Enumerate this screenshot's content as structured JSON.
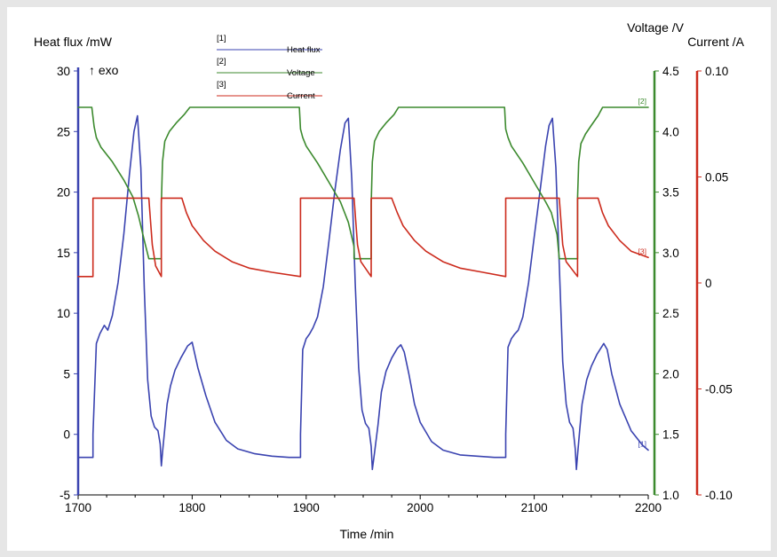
{
  "chart_data": {
    "type": "line",
    "xlabel": "Time /min",
    "xlim": [
      1700,
      2200
    ],
    "xticks": [
      1700,
      1800,
      1900,
      2000,
      2100,
      2200
    ],
    "axes": {
      "heat": {
        "label": "Heat flux /mW",
        "ylim": [
          -5,
          30
        ],
        "ticks": [
          -5,
          0,
          5,
          10,
          15,
          20,
          25,
          30
        ],
        "tick_labels": [
          "-5",
          "0",
          "5",
          "10",
          "15",
          "20",
          "25",
          "30"
        ],
        "color": "#3a43b0",
        "annotation": "↑ exo"
      },
      "voltage": {
        "label": "Voltage /V",
        "ylim": [
          1.0,
          4.5
        ],
        "ticks": [
          1.0,
          1.5,
          2.0,
          2.5,
          3.0,
          3.5,
          4.0,
          4.5
        ],
        "tick_labels": [
          "1.0",
          "1.5",
          "2.0",
          "2.5",
          "3.0",
          "3.5",
          "4.0",
          "4.5"
        ],
        "color": "#3c8a2e"
      },
      "current": {
        "label": "Current /A",
        "ylim": [
          -0.1,
          0.1
        ],
        "ticks": [
          -0.1,
          -0.05,
          0,
          0.05,
          0.1
        ],
        "tick_labels": [
          "-0.10",
          "-0.05",
          "0",
          "0.05",
          "0.10"
        ],
        "color": "#cc2b1d"
      }
    },
    "legend": {
      "placement": "top-center",
      "entries": [
        {
          "index": "[1]",
          "name": "Heat flux",
          "color": "#3a43b0"
        },
        {
          "index": "[2]",
          "name": "Voltage",
          "color": "#3c8a2e"
        },
        {
          "index": "[3]",
          "name": "Current",
          "color": "#cc2b1d"
        }
      ]
    },
    "series": [
      {
        "key": "heat",
        "name": "Heat flux",
        "axis": "heat",
        "end_label": "[1]",
        "color": "#3a43b0",
        "x": [
          1700,
          1713,
          1713,
          1716,
          1719,
          1723,
          1726,
          1730,
          1735,
          1740,
          1745,
          1749,
          1752,
          1755,
          1758,
          1761,
          1764,
          1767,
          1770,
          1772,
          1773,
          1774,
          1776,
          1778,
          1781,
          1785,
          1790,
          1796,
          1800,
          1805,
          1812,
          1820,
          1830,
          1840,
          1855,
          1870,
          1885,
          1895,
          1895,
          1897,
          1900,
          1903,
          1906,
          1910,
          1915,
          1920,
          1925,
          1930,
          1934,
          1937,
          1940,
          1943,
          1946,
          1949,
          1952,
          1955,
          1957,
          1958,
          1960,
          1963,
          1966,
          1970,
          1975,
          1980,
          1983,
          1986,
          1990,
          1995,
          2000,
          2010,
          2020,
          2035,
          2050,
          2065,
          2075,
          2075,
          2077,
          2080,
          2083,
          2086,
          2090,
          2095,
          2100,
          2105,
          2110,
          2113,
          2116,
          2119,
          2122,
          2125,
          2128,
          2131,
          2134,
          2136,
          2137,
          2138,
          2140,
          2142,
          2146,
          2150,
          2155,
          2161,
          2164,
          2168,
          2175,
          2185,
          2195,
          2200
        ],
        "y": [
          -1.9,
          -1.9,
          0.0,
          7.5,
          8.3,
          9.0,
          8.6,
          9.8,
          12.5,
          16.5,
          21.5,
          25.0,
          26.3,
          22.0,
          12.0,
          4.5,
          1.5,
          0.6,
          0.3,
          -0.8,
          -2.6,
          -1.5,
          0.5,
          2.5,
          4.0,
          5.3,
          6.3,
          7.3,
          7.6,
          5.5,
          3.2,
          1.0,
          -0.5,
          -1.2,
          -1.6,
          -1.8,
          -1.9,
          -1.9,
          0.0,
          7.0,
          7.9,
          8.3,
          8.8,
          9.7,
          12.2,
          16.0,
          20.0,
          23.5,
          25.7,
          26.1,
          21.0,
          12.5,
          5.5,
          2.0,
          0.9,
          0.5,
          -1.0,
          -2.9,
          -1.5,
          0.8,
          3.5,
          5.2,
          6.3,
          7.1,
          7.4,
          6.8,
          5.0,
          2.5,
          1.0,
          -0.6,
          -1.3,
          -1.7,
          -1.8,
          -1.9,
          -1.9,
          0.0,
          7.2,
          7.9,
          8.3,
          8.6,
          9.7,
          12.5,
          16.3,
          20.0,
          23.8,
          25.5,
          26.1,
          22.0,
          14.0,
          6.0,
          2.5,
          1.0,
          0.5,
          -1.2,
          -2.9,
          -1.7,
          0.5,
          2.5,
          4.5,
          5.6,
          6.6,
          7.5,
          7.0,
          5.0,
          2.5,
          0.3,
          -0.9,
          -1.3
        ]
      },
      {
        "key": "voltage",
        "name": "Voltage",
        "axis": "voltage",
        "end_label": "[2]",
        "color": "#3c8a2e",
        "x": [
          1700,
          1712,
          1714,
          1716,
          1720,
          1730,
          1740,
          1748,
          1753,
          1758,
          1762,
          1762,
          1773,
          1773,
          1774,
          1776,
          1780,
          1786,
          1793,
          1798,
          1800,
          1850,
          1894,
          1895,
          1897,
          1900,
          1910,
          1920,
          1930,
          1937,
          1942,
          1942,
          1957,
          1957,
          1958,
          1960,
          1964,
          1970,
          1977,
          1981,
          1985,
          2030,
          2074,
          2075,
          2077,
          2080,
          2090,
          2100,
          2110,
          2115,
          2120,
          2122,
          2122,
          2138,
          2138,
          2139,
          2141,
          2145,
          2150,
          2156,
          2160,
          2165,
          2200
        ],
        "y": [
          4.2,
          4.2,
          4.04,
          3.95,
          3.87,
          3.75,
          3.6,
          3.46,
          3.3,
          3.1,
          2.95,
          2.95,
          2.95,
          3.4,
          3.75,
          3.92,
          4.0,
          4.07,
          4.14,
          4.2,
          4.2,
          4.2,
          4.2,
          4.02,
          3.95,
          3.88,
          3.74,
          3.58,
          3.42,
          3.25,
          3.05,
          2.95,
          2.95,
          3.4,
          3.75,
          3.92,
          4.0,
          4.07,
          4.14,
          4.2,
          4.2,
          4.2,
          4.2,
          4.02,
          3.95,
          3.88,
          3.74,
          3.58,
          3.42,
          3.33,
          3.15,
          2.95,
          2.95,
          2.95,
          3.45,
          3.75,
          3.9,
          3.98,
          4.05,
          4.13,
          4.2,
          4.2,
          4.2
        ]
      },
      {
        "key": "current",
        "name": "Current",
        "axis": "current",
        "end_label": "[3]",
        "color": "#cc2b1d",
        "x": [
          1700,
          1713,
          1713,
          1762,
          1765,
          1768,
          1773,
          1773,
          1791,
          1795,
          1800,
          1810,
          1820,
          1835,
          1850,
          1870,
          1895,
          1895,
          1942,
          1945,
          1948,
          1957,
          1957,
          1975,
          1980,
          1985,
          1995,
          2005,
          2020,
          2035,
          2055,
          2075,
          2075,
          2122,
          2125,
          2128,
          2138,
          2138,
          2156,
          2160,
          2165,
          2175,
          2185,
          2200
        ],
        "y": [
          0.003,
          0.003,
          0.04,
          0.04,
          0.018,
          0.008,
          0.003,
          0.04,
          0.04,
          0.033,
          0.027,
          0.02,
          0.015,
          0.01,
          0.007,
          0.005,
          0.003,
          0.04,
          0.04,
          0.018,
          0.01,
          0.003,
          0.04,
          0.04,
          0.033,
          0.027,
          0.02,
          0.015,
          0.01,
          0.007,
          0.005,
          0.003,
          0.04,
          0.04,
          0.018,
          0.01,
          0.003,
          0.04,
          0.04,
          0.033,
          0.027,
          0.02,
          0.015,
          0.012
        ]
      }
    ]
  }
}
